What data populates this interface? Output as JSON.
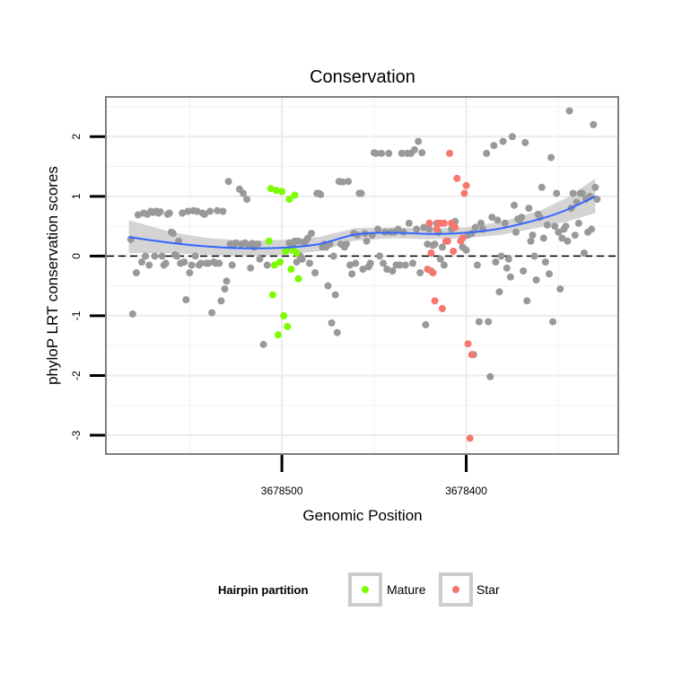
{
  "chart_data": {
    "type": "scatter",
    "title": "Conservation",
    "xlabel": "Genomic Position",
    "ylabel": "phyloP LRT conservation scores",
    "x_axis_reversed": true,
    "xlim": [
      3678595,
      3678318
    ],
    "ylim": [
      -3.3,
      2.65
    ],
    "x_ticks": [
      3678500,
      3678400
    ],
    "x_tick_labels": [
      "3678500",
      "3678400"
    ],
    "y_ticks": [
      -3,
      -2,
      -1,
      0,
      1,
      2
    ],
    "y_tick_labels": [
      "-3",
      "-2",
      "-1",
      "0",
      "1",
      "2"
    ],
    "grid": true,
    "reference_line": {
      "y": 0,
      "style": "dashed"
    },
    "legend": {
      "title": "Hairpin partition",
      "placement": "bottom",
      "entries": [
        {
          "label": "Mature",
          "color": "#7cfc00"
        },
        {
          "label": "Star",
          "color": "#f8766d"
        }
      ]
    },
    "colors": {
      "background_points": "#999999",
      "mature": "#7cfc00",
      "star": "#f8766d",
      "smooth": "#3366ff",
      "ribbon": "#cccccc"
    },
    "series": [
      {
        "group": "background",
        "points": [
          [
            3678582,
            0.28
          ],
          [
            3678581,
            -0.97
          ],
          [
            3678579,
            -0.28
          ],
          [
            3678578,
            0.69
          ],
          [
            3678576,
            -0.1
          ],
          [
            3678575,
            0.72
          ],
          [
            3678574,
            0.0
          ],
          [
            3678573,
            0.7
          ],
          [
            3678572,
            -0.15
          ],
          [
            3678571,
            0.75
          ],
          [
            3678570,
            0.73
          ],
          [
            3678569,
            0.0
          ],
          [
            3678568,
            0.75
          ],
          [
            3678567,
            0.72
          ],
          [
            3678566,
            0.74
          ],
          [
            3678565,
            0.0
          ],
          [
            3678564,
            -0.15
          ],
          [
            3678563,
            -0.12
          ],
          [
            3678562,
            0.7
          ],
          [
            3678561,
            0.72
          ],
          [
            3678560,
            0.4
          ],
          [
            3678559,
            0.38
          ],
          [
            3678558,
            0.02
          ],
          [
            3678557,
            0.0
          ],
          [
            3678556,
            0.25
          ],
          [
            3678555,
            -0.12
          ],
          [
            3678554,
            0.72
          ],
          [
            3678553,
            -0.1
          ],
          [
            3678552,
            -0.73
          ],
          [
            3678551,
            0.75
          ],
          [
            3678550,
            -0.28
          ],
          [
            3678549,
            -0.15
          ],
          [
            3678548,
            0.76
          ],
          [
            3678547,
            0.0
          ],
          [
            3678546,
            0.75
          ],
          [
            3678545,
            -0.15
          ],
          [
            3678544,
            -0.12
          ],
          [
            3678543,
            0.72
          ],
          [
            3678542,
            0.7
          ],
          [
            3678541,
            -0.12
          ],
          [
            3678540,
            -0.12
          ],
          [
            3678539,
            0.75
          ],
          [
            3678538,
            -0.95
          ],
          [
            3678537,
            -0.1
          ],
          [
            3678536,
            -0.12
          ],
          [
            3678535,
            0.76
          ],
          [
            3678534,
            -0.12
          ],
          [
            3678533,
            -0.75
          ],
          [
            3678532,
            0.75
          ],
          [
            3678531,
            -0.55
          ],
          [
            3678530,
            -0.42
          ],
          [
            3678529,
            1.25
          ],
          [
            3678528,
            0.2
          ],
          [
            3678527,
            -0.15
          ],
          [
            3678526,
            0.2
          ],
          [
            3678525,
            0.22
          ],
          [
            3678523,
            1.12
          ],
          [
            3678522,
            0.2
          ],
          [
            3678521,
            1.05
          ],
          [
            3678520,
            0.22
          ],
          [
            3678519,
            0.95
          ],
          [
            3678518,
            0.18
          ],
          [
            3678517,
            -0.2
          ],
          [
            3678516,
            0.21
          ],
          [
            3678515,
            0.15
          ],
          [
            3678514,
            0.17
          ],
          [
            3678513,
            0.2
          ],
          [
            3678512,
            -0.05
          ],
          [
            3678510,
            -1.48
          ],
          [
            3678508,
            -0.15
          ],
          [
            3678496,
            0.22
          ],
          [
            3678495,
            0.15
          ],
          [
            3678494,
            0.2
          ],
          [
            3678493,
            0.25
          ],
          [
            3678492,
            -0.1
          ],
          [
            3678491,
            0.25
          ],
          [
            3678490,
            0.0
          ],
          [
            3678489,
            -0.05
          ],
          [
            3678488,
            0.22
          ],
          [
            3678487,
            0.25
          ],
          [
            3678486,
            0.3
          ],
          [
            3678485,
            -0.12
          ],
          [
            3678484,
            0.38
          ],
          [
            3678482,
            -0.28
          ],
          [
            3678481,
            1.05
          ],
          [
            3678480,
            1.05
          ],
          [
            3678479,
            1.03
          ],
          [
            3678478,
            0.15
          ],
          [
            3678477,
            0.2
          ],
          [
            3678476,
            0.15
          ],
          [
            3678475,
            -0.5
          ],
          [
            3678474,
            0.2
          ],
          [
            3678473,
            -1.12
          ],
          [
            3678472,
            0.0
          ],
          [
            3678471,
            -0.65
          ],
          [
            3678470,
            -1.28
          ],
          [
            3678469,
            1.25
          ],
          [
            3678468,
            0.2
          ],
          [
            3678467,
            1.24
          ],
          [
            3678466,
            0.15
          ],
          [
            3678465,
            0.2
          ],
          [
            3678464,
            1.25
          ],
          [
            3678463,
            -0.15
          ],
          [
            3678462,
            -0.3
          ],
          [
            3678461,
            0.38
          ],
          [
            3678460,
            -0.12
          ],
          [
            3678459,
            0.35
          ],
          [
            3678458,
            1.05
          ],
          [
            3678457,
            1.05
          ],
          [
            3678456,
            -0.22
          ],
          [
            3678455,
            0.38
          ],
          [
            3678454,
            0.25
          ],
          [
            3678453,
            -0.18
          ],
          [
            3678452,
            -0.12
          ],
          [
            3678451,
            0.35
          ],
          [
            3678450,
            1.73
          ],
          [
            3678449,
            1.72
          ],
          [
            3678448,
            0.45
          ],
          [
            3678447,
            0.0
          ],
          [
            3678446,
            1.72
          ],
          [
            3678445,
            -0.12
          ],
          [
            3678444,
            0.4
          ],
          [
            3678443,
            -0.22
          ],
          [
            3678442,
            1.72
          ],
          [
            3678441,
            0.4
          ],
          [
            3678440,
            -0.25
          ],
          [
            3678439,
            0.4
          ],
          [
            3678438,
            -0.15
          ],
          [
            3678437,
            0.45
          ],
          [
            3678436,
            -0.15
          ],
          [
            3678435,
            1.72
          ],
          [
            3678434,
            0.4
          ],
          [
            3678433,
            -0.15
          ],
          [
            3678432,
            1.72
          ],
          [
            3678431,
            0.55
          ],
          [
            3678430,
            1.72
          ],
          [
            3678429,
            -0.12
          ],
          [
            3678428,
            1.78
          ],
          [
            3678427,
            0.45
          ],
          [
            3678426,
            1.92
          ],
          [
            3678425,
            -0.28
          ],
          [
            3678424,
            1.73
          ],
          [
            3678423,
            0.48
          ],
          [
            3678422,
            -1.15
          ],
          [
            3678421,
            0.2
          ],
          [
            3678420,
            0.45
          ],
          [
            3678419,
            -0.25
          ],
          [
            3678418,
            0.18
          ],
          [
            3678417,
            0.2
          ],
          [
            3678416,
            0.55
          ],
          [
            3678415,
            0.4
          ],
          [
            3678414,
            -0.05
          ],
          [
            3678413,
            0.15
          ],
          [
            3678412,
            -0.15
          ],
          [
            3678408,
            0.45
          ],
          [
            3678406,
            0.58
          ],
          [
            3678402,
            0.15
          ],
          [
            3678400,
            0.1
          ],
          [
            3678399,
            0.35
          ],
          [
            3678397,
            0.38
          ],
          [
            3678396,
            -1.65
          ],
          [
            3678395,
            0.48
          ],
          [
            3678394,
            -0.15
          ],
          [
            3678393,
            -1.1
          ],
          [
            3678392,
            0.55
          ],
          [
            3678391,
            0.45
          ],
          [
            3678389,
            1.72
          ],
          [
            3678388,
            -1.1
          ],
          [
            3678387,
            -2.02
          ],
          [
            3678386,
            0.65
          ],
          [
            3678385,
            1.85
          ],
          [
            3678384,
            -0.1
          ],
          [
            3678383,
            0.6
          ],
          [
            3678382,
            -0.6
          ],
          [
            3678381,
            0.0
          ],
          [
            3678380,
            1.92
          ],
          [
            3678379,
            0.55
          ],
          [
            3678378,
            -0.2
          ],
          [
            3678377,
            -0.05
          ],
          [
            3678376,
            -0.35
          ],
          [
            3678375,
            2.0
          ],
          [
            3678374,
            0.85
          ],
          [
            3678373,
            0.4
          ],
          [
            3678372,
            0.62
          ],
          [
            3678371,
            0.6
          ],
          [
            3678370,
            0.65
          ],
          [
            3678369,
            -0.25
          ],
          [
            3678368,
            1.9
          ],
          [
            3678367,
            -0.75
          ],
          [
            3678366,
            0.8
          ],
          [
            3678365,
            0.25
          ],
          [
            3678364,
            0.35
          ],
          [
            3678363,
            0.0
          ],
          [
            3678362,
            -0.4
          ],
          [
            3678361,
            0.7
          ],
          [
            3678360,
            0.65
          ],
          [
            3678359,
            1.15
          ],
          [
            3678358,
            0.3
          ],
          [
            3678357,
            -0.1
          ],
          [
            3678356,
            0.52
          ],
          [
            3678355,
            -0.3
          ],
          [
            3678354,
            1.65
          ],
          [
            3678353,
            -1.1
          ],
          [
            3678352,
            0.5
          ],
          [
            3678351,
            1.05
          ],
          [
            3678350,
            0.4
          ],
          [
            3678349,
            -0.55
          ],
          [
            3678348,
            0.3
          ],
          [
            3678347,
            0.45
          ],
          [
            3678346,
            0.5
          ],
          [
            3678345,
            0.25
          ],
          [
            3678344,
            2.43
          ],
          [
            3678343,
            0.8
          ],
          [
            3678342,
            1.05
          ],
          [
            3678341,
            0.35
          ],
          [
            3678340,
            0.9
          ],
          [
            3678339,
            0.55
          ],
          [
            3678338,
            1.05
          ],
          [
            3678337,
            1.05
          ],
          [
            3678336,
            0.05
          ],
          [
            3678335,
            0.95
          ],
          [
            3678334,
            0.4
          ],
          [
            3678333,
            1.0
          ],
          [
            3678332,
            0.45
          ],
          [
            3678331,
            2.2
          ],
          [
            3678330,
            1.15
          ],
          [
            3678329,
            0.95
          ]
        ]
      },
      {
        "group": "Mature",
        "points": [
          [
            3678507,
            0.25
          ],
          [
            3678506,
            1.13
          ],
          [
            3678505,
            -0.65
          ],
          [
            3678504,
            -0.15
          ],
          [
            3678503,
            1.1
          ],
          [
            3678502,
            -1.32
          ],
          [
            3678501,
            -0.1
          ],
          [
            3678500,
            1.08
          ],
          [
            3678499,
            -1.0
          ],
          [
            3678498,
            0.08
          ],
          [
            3678497,
            -1.18
          ],
          [
            3678496,
            0.95
          ],
          [
            3678495,
            -0.22
          ],
          [
            3678494,
            0.1
          ],
          [
            3678493,
            1.02
          ],
          [
            3678492,
            0.05
          ],
          [
            3678491,
            -0.38
          ]
        ]
      },
      {
        "group": "Star",
        "points": [
          [
            3678421,
            -0.22
          ],
          [
            3678420,
            0.55
          ],
          [
            3678419,
            0.05
          ],
          [
            3678418,
            -0.28
          ],
          [
            3678417,
            -0.75
          ],
          [
            3678416,
            0.45
          ],
          [
            3678415,
            0.55
          ],
          [
            3678414,
            0.55
          ],
          [
            3678413,
            -0.88
          ],
          [
            3678412,
            0.55
          ],
          [
            3678411,
            0.25
          ],
          [
            3678410,
            0.25
          ],
          [
            3678409,
            1.72
          ],
          [
            3678408,
            0.55
          ],
          [
            3678407,
            0.08
          ],
          [
            3678406,
            0.48
          ],
          [
            3678405,
            1.3
          ],
          [
            3678403,
            0.25
          ],
          [
            3678402,
            0.3
          ],
          [
            3678401,
            1.05
          ],
          [
            3678400,
            1.18
          ],
          [
            3678399,
            -1.47
          ],
          [
            3678398,
            -3.05
          ],
          [
            3678397,
            -1.65
          ]
        ]
      }
    ],
    "smooth": {
      "x": [
        3678583,
        3678560,
        3678540,
        3678520,
        3678500,
        3678480,
        3678460,
        3678440,
        3678420,
        3678400,
        3678380,
        3678360,
        3678345,
        3678330
      ],
      "y": [
        0.32,
        0.22,
        0.16,
        0.13,
        0.14,
        0.2,
        0.36,
        0.39,
        0.37,
        0.39,
        0.47,
        0.62,
        0.78,
        1.0
      ],
      "lower": [
        0.05,
        0.05,
        0.02,
        0.0,
        0.02,
        0.08,
        0.26,
        0.3,
        0.28,
        0.3,
        0.36,
        0.48,
        0.58,
        0.72
      ],
      "upper": [
        0.6,
        0.4,
        0.3,
        0.26,
        0.27,
        0.32,
        0.47,
        0.48,
        0.46,
        0.48,
        0.58,
        0.76,
        0.98,
        1.3
      ]
    }
  }
}
